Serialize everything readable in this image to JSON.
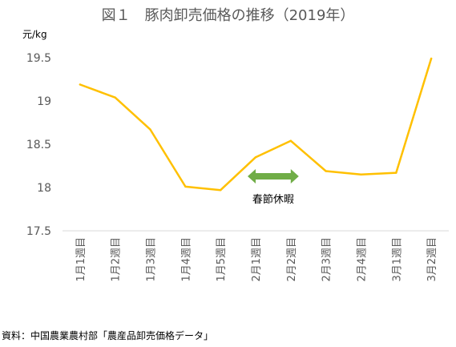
{
  "title": "図１　豚肉卸売価格の推移（2019年）",
  "unit": "元/kg",
  "source": "資料：中国農業農村部「農産品卸売価格データ」",
  "colors": {
    "line": "#FFC000",
    "arrow": "#70AD47",
    "axis": "#D9D9D9"
  },
  "annotation": {
    "label": "春節休暇",
    "from_index": 5,
    "to_index": 6,
    "y": 18.13
  },
  "chart_data": {
    "type": "line",
    "title": "図１　豚肉卸売価格の推移（2019年）",
    "ylabel": "元/kg",
    "xlabel": "",
    "ylim": [
      17.5,
      19.5
    ],
    "yticks": [
      17.5,
      18,
      18.5,
      19,
      19.5
    ],
    "grid": false,
    "categories": [
      "1月1週目",
      "1月2週目",
      "1月3週目",
      "1月4週目",
      "1月5週目",
      "2月1週目",
      "2月2週目",
      "2月3週目",
      "2月4週目",
      "3月1週目",
      "3月2週目"
    ],
    "series": [
      {
        "values": [
          19.19,
          19.04,
          18.67,
          18.01,
          17.97,
          18.35,
          18.54,
          18.19,
          18.15,
          18.17,
          19.49
        ]
      }
    ]
  }
}
